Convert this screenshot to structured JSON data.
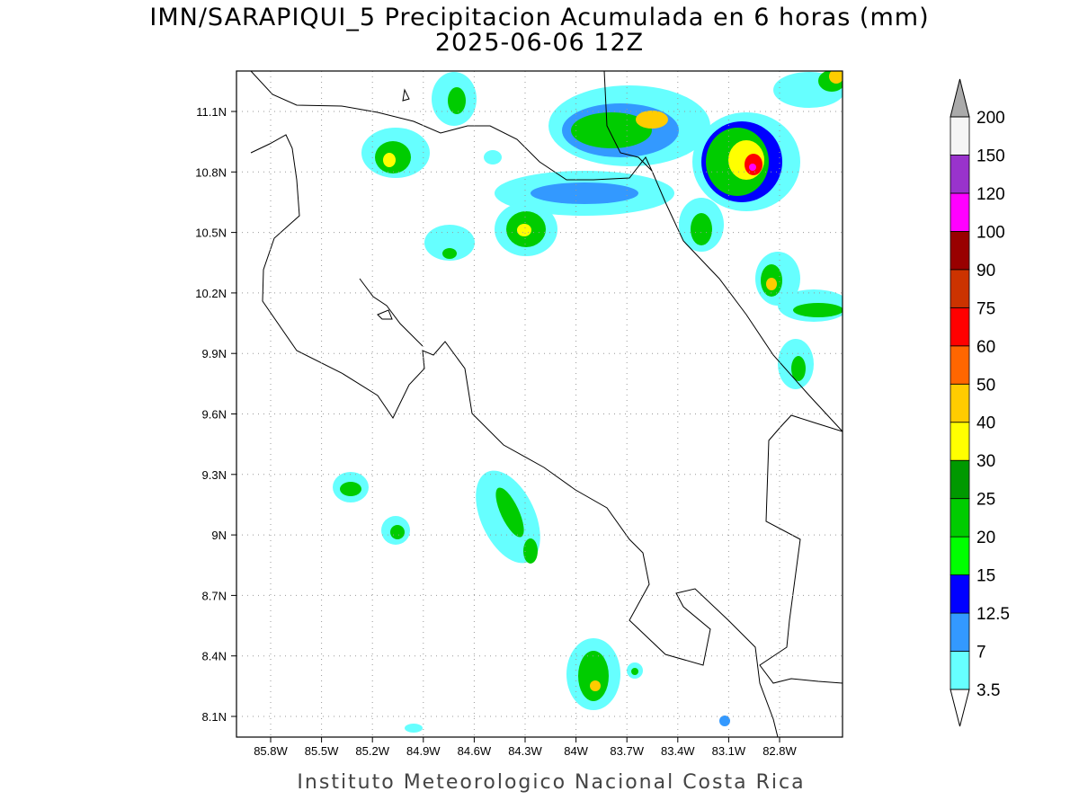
{
  "title": "IMN/SARAPIQUI_5 Precipitacion Acumulada en 6 horas (mm)",
  "subtitle": "2025-06-06 12Z",
  "footer": "Instituto Meteorologico Nacional Costa Rica",
  "map": {
    "lon_ticks": [
      "85.8W",
      "85.5W",
      "85.2W",
      "84.9W",
      "84.6W",
      "84.3W",
      "84W",
      "83.7W",
      "83.4W",
      "83.1W",
      "82.8W"
    ],
    "lat_ticks": [
      "11.1N",
      "10.8N",
      "10.5N",
      "10.2N",
      "9.9N",
      "9.6N",
      "9.3N",
      "9N",
      "8.7N",
      "8.4N",
      "8.1N"
    ]
  },
  "colorbar": {
    "levels": [
      3.5,
      7,
      12.5,
      15,
      20,
      25,
      30,
      40,
      50,
      60,
      75,
      90,
      100,
      120,
      150,
      200
    ],
    "colors": [
      "#66ffff",
      "#3399ff",
      "#0000ff",
      "#00ff00",
      "#00cc00",
      "#009900",
      "#ffff00",
      "#ffcc00",
      "#ff6600",
      "#ff0000",
      "#cc3300",
      "#990000",
      "#ff00ff",
      "#9933cc",
      "#f5f5f5"
    ],
    "under_color": "#ffffff",
    "over_color": "#aaaaaa"
  }
}
